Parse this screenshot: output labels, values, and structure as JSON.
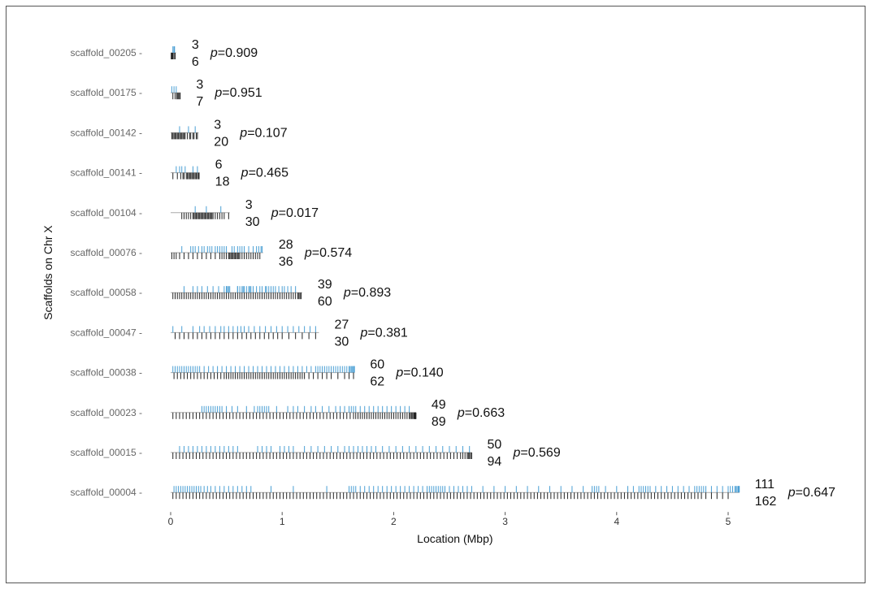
{
  "chart_data": {
    "type": "strip",
    "xlabel": "Location (Mbp)",
    "ylabel": "Scaffolds on Chr X",
    "xlim": [
      0,
      5.1
    ],
    "xticks": [
      0,
      1,
      2,
      3,
      4,
      5
    ],
    "grid": false,
    "colors": {
      "top": "#4a9fd4",
      "bottom": "#222222",
      "baseline": "#aaaaaa"
    },
    "scaffolds": [
      {
        "name": "scaffold_00205",
        "length": 0.05,
        "top_count": "3",
        "bottom_count": "6",
        "p": "0.909",
        "top": [
          0.02,
          0.03,
          0.035
        ],
        "bottom": [
          0.005,
          0.01,
          0.015,
          0.02,
          0.03,
          0.04
        ]
      },
      {
        "name": "scaffold_00175",
        "length": 0.09,
        "top_count": "3",
        "bottom_count": "7",
        "p": "0.951",
        "top": [
          0.01,
          0.03,
          0.05
        ],
        "bottom": [
          0.02,
          0.04,
          0.055,
          0.06,
          0.07,
          0.08,
          0.085
        ]
      },
      {
        "name": "scaffold_00142",
        "length": 0.25,
        "top_count": "3",
        "bottom_count": "20",
        "p": "0.107",
        "top": [
          0.08,
          0.16,
          0.22
        ],
        "bottom": [
          0.01,
          0.02,
          0.03,
          0.04,
          0.05,
          0.06,
          0.07,
          0.08,
          0.09,
          0.1,
          0.11,
          0.12,
          0.13,
          0.15,
          0.17,
          0.18,
          0.2,
          0.21,
          0.23,
          0.24
        ]
      },
      {
        "name": "scaffold_00141",
        "length": 0.26,
        "top_count": "6",
        "bottom_count": "18",
        "p": "0.465",
        "top": [
          0.05,
          0.08,
          0.1,
          0.13,
          0.2,
          0.24
        ],
        "bottom": [
          0.02,
          0.06,
          0.09,
          0.11,
          0.12,
          0.14,
          0.15,
          0.16,
          0.17,
          0.18,
          0.19,
          0.2,
          0.21,
          0.22,
          0.23,
          0.24,
          0.25,
          0.255
        ]
      },
      {
        "name": "scaffold_00104",
        "length": 0.53,
        "top_count": "3",
        "bottom_count": "30",
        "p": "0.017",
        "top": [
          0.22,
          0.32,
          0.45
        ],
        "bottom": [
          0.1,
          0.12,
          0.14,
          0.16,
          0.18,
          0.2,
          0.21,
          0.22,
          0.23,
          0.24,
          0.25,
          0.26,
          0.27,
          0.28,
          0.29,
          0.3,
          0.31,
          0.32,
          0.33,
          0.34,
          0.35,
          0.36,
          0.37,
          0.38,
          0.4,
          0.42,
          0.44,
          0.46,
          0.48,
          0.52
        ]
      },
      {
        "name": "scaffold_00076",
        "length": 0.83,
        "top_count": "28",
        "bottom_count": "36",
        "p": "0.574",
        "top": [
          0.1,
          0.18,
          0.2,
          0.22,
          0.25,
          0.28,
          0.3,
          0.33,
          0.35,
          0.37,
          0.4,
          0.42,
          0.44,
          0.46,
          0.48,
          0.5,
          0.55,
          0.57,
          0.6,
          0.62,
          0.64,
          0.66,
          0.7,
          0.74,
          0.77,
          0.79,
          0.81,
          0.82
        ],
        "bottom": [
          0.01,
          0.03,
          0.05,
          0.08,
          0.12,
          0.16,
          0.2,
          0.24,
          0.28,
          0.32,
          0.36,
          0.4,
          0.44,
          0.46,
          0.48,
          0.5,
          0.52,
          0.53,
          0.54,
          0.55,
          0.56,
          0.57,
          0.58,
          0.59,
          0.6,
          0.61,
          0.62,
          0.64,
          0.66,
          0.68,
          0.7,
          0.72,
          0.74,
          0.76,
          0.78,
          0.8
        ]
      },
      {
        "name": "scaffold_00058",
        "length": 1.18,
        "top_count": "39",
        "bottom_count": "60",
        "p": "0.893",
        "top": [
          0.12,
          0.2,
          0.24,
          0.28,
          0.33,
          0.38,
          0.43,
          0.48,
          0.5,
          0.52,
          0.5,
          0.51,
          0.53,
          0.6,
          0.6,
          0.62,
          0.64,
          0.65,
          0.66,
          0.68,
          0.7,
          0.71,
          0.72,
          0.74,
          0.77,
          0.8,
          0.82,
          0.85,
          0.86,
          0.88,
          0.9,
          0.92,
          0.94,
          0.97,
          1.0,
          1.02,
          1.05,
          1.08,
          1.12
        ],
        "bottom": [
          0.02,
          0.04,
          0.06,
          0.08,
          0.1,
          0.12,
          0.14,
          0.16,
          0.18,
          0.2,
          0.22,
          0.24,
          0.26,
          0.28,
          0.3,
          0.32,
          0.34,
          0.36,
          0.38,
          0.4,
          0.42,
          0.44,
          0.46,
          0.48,
          0.5,
          0.52,
          0.54,
          0.56,
          0.58,
          0.6,
          0.62,
          0.64,
          0.66,
          0.68,
          0.7,
          0.72,
          0.74,
          0.76,
          0.78,
          0.8,
          0.82,
          0.84,
          0.86,
          0.88,
          0.9,
          0.92,
          0.94,
          0.96,
          0.98,
          1.0,
          1.02,
          1.04,
          1.06,
          1.08,
          1.1,
          1.12,
          1.14,
          1.15,
          1.16,
          1.17
        ]
      },
      {
        "name": "scaffold_00047",
        "length": 1.33,
        "top_count": "27",
        "bottom_count": "30",
        "p": "0.381",
        "top": [
          0.02,
          0.1,
          0.2,
          0.26,
          0.3,
          0.35,
          0.4,
          0.45,
          0.48,
          0.52,
          0.56,
          0.6,
          0.63,
          0.66,
          0.7,
          0.75,
          0.8,
          0.85,
          0.9,
          0.95,
          1.0,
          1.05,
          1.1,
          1.15,
          1.2,
          1.25,
          1.3
        ],
        "bottom": [
          0.04,
          0.08,
          0.12,
          0.16,
          0.2,
          0.24,
          0.28,
          0.32,
          0.36,
          0.4,
          0.44,
          0.48,
          0.52,
          0.56,
          0.6,
          0.64,
          0.68,
          0.72,
          0.76,
          0.8,
          0.84,
          0.88,
          0.92,
          0.96,
          1.0,
          1.06,
          1.12,
          1.18,
          1.24,
          1.3
        ]
      },
      {
        "name": "scaffold_00038",
        "length": 1.65,
        "top_count": "60",
        "bottom_count": "62",
        "p": "0.140",
        "top": [
          0.02,
          0.04,
          0.06,
          0.08,
          0.1,
          0.12,
          0.14,
          0.16,
          0.18,
          0.2,
          0.22,
          0.24,
          0.26,
          0.3,
          0.34,
          0.38,
          0.42,
          0.46,
          0.5,
          0.54,
          0.58,
          0.62,
          0.66,
          0.7,
          0.74,
          0.78,
          0.82,
          0.86,
          0.9,
          0.94,
          0.98,
          1.02,
          1.06,
          1.1,
          1.14,
          1.18,
          1.22,
          1.26,
          1.3,
          1.32,
          1.34,
          1.36,
          1.38,
          1.4,
          1.42,
          1.44,
          1.46,
          1.48,
          1.5,
          1.52,
          1.54,
          1.56,
          1.58,
          1.6,
          1.61,
          1.62,
          1.63,
          1.64,
          1.645,
          1.648
        ],
        "bottom": [
          0.03,
          0.06,
          0.09,
          0.12,
          0.15,
          0.18,
          0.21,
          0.24,
          0.27,
          0.3,
          0.33,
          0.36,
          0.39,
          0.42,
          0.45,
          0.48,
          0.5,
          0.52,
          0.54,
          0.56,
          0.58,
          0.6,
          0.62,
          0.64,
          0.66,
          0.68,
          0.7,
          0.72,
          0.74,
          0.76,
          0.78,
          0.8,
          0.82,
          0.84,
          0.86,
          0.88,
          0.9,
          0.92,
          0.94,
          0.96,
          0.98,
          1.0,
          1.02,
          1.04,
          1.06,
          1.08,
          1.1,
          1.12,
          1.14,
          1.16,
          1.18,
          1.2,
          1.24,
          1.28,
          1.32,
          1.36,
          1.4,
          1.44,
          1.5,
          1.56,
          1.6,
          1.64
        ]
      },
      {
        "name": "scaffold_00023",
        "length": 2.2,
        "top_count": "49",
        "bottom_count": "89",
        "p": "0.663",
        "top": [
          0.28,
          0.3,
          0.32,
          0.34,
          0.36,
          0.38,
          0.4,
          0.42,
          0.44,
          0.46,
          0.5,
          0.55,
          0.6,
          0.68,
          0.75,
          0.78,
          0.8,
          0.82,
          0.84,
          0.86,
          0.88,
          0.95,
          1.05,
          1.1,
          1.14,
          1.2,
          1.26,
          1.3,
          1.36,
          1.42,
          1.48,
          1.52,
          1.56,
          1.6,
          1.62,
          1.64,
          1.66,
          1.7,
          1.74,
          1.78,
          1.82,
          1.86,
          1.9,
          1.94,
          1.98,
          2.02,
          2.06,
          2.1,
          2.14
        ],
        "bottom": [
          0.02,
          0.05,
          0.08,
          0.11,
          0.14,
          0.17,
          0.2,
          0.23,
          0.26,
          0.29,
          0.32,
          0.35,
          0.38,
          0.41,
          0.44,
          0.47,
          0.5,
          0.53,
          0.56,
          0.59,
          0.62,
          0.65,
          0.68,
          0.71,
          0.74,
          0.77,
          0.8,
          0.83,
          0.86,
          0.89,
          0.92,
          0.95,
          0.98,
          1.01,
          1.04,
          1.07,
          1.1,
          1.13,
          1.16,
          1.19,
          1.22,
          1.25,
          1.28,
          1.31,
          1.34,
          1.37,
          1.4,
          1.43,
          1.46,
          1.49,
          1.52,
          1.55,
          1.58,
          1.61,
          1.64,
          1.66,
          1.68,
          1.7,
          1.72,
          1.74,
          1.76,
          1.78,
          1.8,
          1.82,
          1.84,
          1.86,
          1.88,
          1.9,
          1.92,
          1.94,
          1.96,
          1.98,
          2.0,
          2.02,
          2.04,
          2.06,
          2.08,
          2.1,
          2.12,
          2.14,
          2.15,
          2.16,
          2.17,
          2.18,
          2.185,
          2.19,
          2.195,
          2.2,
          2.198
        ]
      },
      {
        "name": "scaffold_00015",
        "length": 2.7,
        "top_count": "50",
        "bottom_count": "94",
        "p": "0.569",
        "top": [
          0.08,
          0.12,
          0.16,
          0.2,
          0.24,
          0.28,
          0.32,
          0.36,
          0.4,
          0.44,
          0.48,
          0.52,
          0.56,
          0.6,
          0.78,
          0.82,
          0.86,
          0.9,
          0.98,
          1.02,
          1.06,
          1.1,
          1.2,
          1.26,
          1.32,
          1.38,
          1.44,
          1.5,
          1.56,
          1.6,
          1.64,
          1.68,
          1.72,
          1.76,
          1.8,
          1.84,
          1.9,
          1.96,
          2.02,
          2.08,
          2.14,
          2.2,
          2.26,
          2.32,
          2.38,
          2.44,
          2.5,
          2.56,
          2.62,
          2.68
        ],
        "bottom": [
          0.02,
          0.05,
          0.08,
          0.11,
          0.14,
          0.17,
          0.2,
          0.23,
          0.26,
          0.29,
          0.32,
          0.35,
          0.38,
          0.41,
          0.44,
          0.47,
          0.5,
          0.53,
          0.56,
          0.59,
          0.62,
          0.65,
          0.68,
          0.71,
          0.74,
          0.77,
          0.8,
          0.83,
          0.86,
          0.89,
          0.92,
          0.95,
          0.98,
          1.01,
          1.04,
          1.07,
          1.1,
          1.13,
          1.16,
          1.19,
          1.22,
          1.25,
          1.28,
          1.31,
          1.34,
          1.37,
          1.4,
          1.43,
          1.46,
          1.49,
          1.52,
          1.55,
          1.58,
          1.61,
          1.64,
          1.67,
          1.7,
          1.73,
          1.76,
          1.79,
          1.82,
          1.85,
          1.88,
          1.91,
          1.94,
          1.97,
          2.0,
          2.03,
          2.06,
          2.09,
          2.12,
          2.15,
          2.18,
          2.21,
          2.24,
          2.27,
          2.3,
          2.33,
          2.36,
          2.39,
          2.42,
          2.45,
          2.48,
          2.51,
          2.54,
          2.57,
          2.6,
          2.62,
          2.64,
          2.66,
          2.67,
          2.68,
          2.69,
          2.7
        ]
      },
      {
        "name": "scaffold_00004",
        "length": 5.1,
        "top_count": "111",
        "bottom_count": "162",
        "p": "0.647",
        "top": [
          0.03,
          0.05,
          0.07,
          0.09,
          0.11,
          0.13,
          0.15,
          0.17,
          0.19,
          0.21,
          0.23,
          0.25,
          0.27,
          0.3,
          0.33,
          0.36,
          0.4,
          0.44,
          0.48,
          0.52,
          0.56,
          0.6,
          0.64,
          0.68,
          0.72,
          0.9,
          1.1,
          1.4,
          1.6,
          1.62,
          1.64,
          1.66,
          1.7,
          1.74,
          1.78,
          1.82,
          1.86,
          1.9,
          1.94,
          1.98,
          2.02,
          2.06,
          2.1,
          2.14,
          2.18,
          2.22,
          2.26,
          2.3,
          2.32,
          2.34,
          2.36,
          2.38,
          2.4,
          2.42,
          2.44,
          2.46,
          2.5,
          2.54,
          2.58,
          2.62,
          2.66,
          2.7,
          2.8,
          2.9,
          3.0,
          3.1,
          3.2,
          3.3,
          3.4,
          3.5,
          3.6,
          3.7,
          3.78,
          3.8,
          3.82,
          3.84,
          3.9,
          4.0,
          4.1,
          4.15,
          4.2,
          4.22,
          4.24,
          4.26,
          4.28,
          4.3,
          4.35,
          4.4,
          4.45,
          4.5,
          4.55,
          4.6,
          4.65,
          4.7,
          4.72,
          4.74,
          4.76,
          4.78,
          4.8,
          4.85,
          4.9,
          4.95,
          5.0,
          5.02,
          5.04,
          5.06,
          5.07,
          5.08,
          5.09,
          5.095,
          5.1
        ],
        "bottom": [
          0.02,
          0.05,
          0.08,
          0.11,
          0.14,
          0.17,
          0.2,
          0.23,
          0.26,
          0.29,
          0.32,
          0.35,
          0.38,
          0.41,
          0.44,
          0.47,
          0.5,
          0.53,
          0.56,
          0.59,
          0.62,
          0.65,
          0.68,
          0.71,
          0.74,
          0.77,
          0.8,
          0.83,
          0.86,
          0.89,
          0.92,
          0.95,
          0.98,
          1.01,
          1.04,
          1.07,
          1.1,
          1.13,
          1.16,
          1.19,
          1.22,
          1.25,
          1.28,
          1.31,
          1.34,
          1.37,
          1.4,
          1.43,
          1.46,
          1.49,
          1.52,
          1.55,
          1.58,
          1.61,
          1.64,
          1.67,
          1.7,
          1.73,
          1.76,
          1.79,
          1.82,
          1.85,
          1.88,
          1.91,
          1.94,
          1.97,
          2.0,
          2.03,
          2.06,
          2.09,
          2.12,
          2.15,
          2.18,
          2.21,
          2.24,
          2.27,
          2.3,
          2.33,
          2.36,
          2.39,
          2.42,
          2.45,
          2.48,
          2.51,
          2.54,
          2.57,
          2.6,
          2.63,
          2.66,
          2.69,
          2.72,
          2.75,
          2.78,
          2.81,
          2.84,
          2.87,
          2.9,
          2.93,
          2.96,
          2.99,
          3.02,
          3.05,
          3.08,
          3.11,
          3.14,
          3.17,
          3.2,
          3.23,
          3.26,
          3.29,
          3.32,
          3.35,
          3.38,
          3.41,
          3.44,
          3.47,
          3.5,
          3.53,
          3.56,
          3.59,
          3.62,
          3.65,
          3.68,
          3.71,
          3.74,
          3.77,
          3.8,
          3.83,
          3.86,
          3.89,
          3.92,
          3.95,
          3.98,
          4.01,
          4.04,
          4.07,
          4.1,
          4.13,
          4.16,
          4.19,
          4.22,
          4.25,
          4.28,
          4.31,
          4.34,
          4.37,
          4.4,
          4.43,
          4.46,
          4.49,
          4.52,
          4.55,
          4.58,
          4.61,
          4.64,
          4.67,
          4.7,
          4.73,
          4.76,
          4.8,
          4.85,
          4.9,
          4.95,
          5.0
        ]
      }
    ]
  }
}
